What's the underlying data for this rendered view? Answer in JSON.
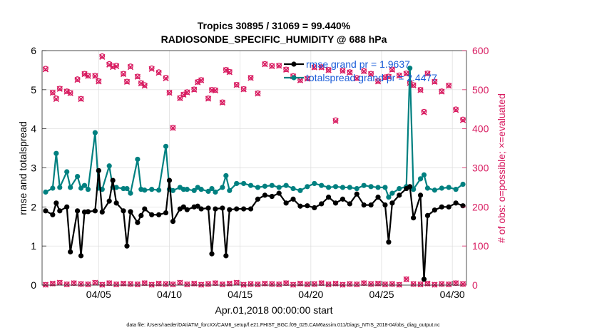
{
  "chart_data": {
    "type": "line",
    "title": "Tropics 30895 / 31069 = 99.440%",
    "subtitle": "RADIOSONDE_SPECIFIC_HUMIDITY @ 688 hPa",
    "xlabel": "Apr.01,2018 00:00:00 start",
    "ylabel": "rmse and totalspread",
    "ylabel_right": "# of obs: o=possible; ×=evaluated",
    "footer": "data file: /Users/raeder/DAI/ATM_forcXX/CAM6_setup/f.e21.FHIST_BGC.f09_025.CAM6assim.011/Diags_NTrS_2018-04/obs_diag_output.nc",
    "xlim": [
      1,
      31
    ],
    "ylim": [
      0,
      6
    ],
    "ylim_right": [
      0,
      600
    ],
    "xticks": [
      5,
      10,
      15,
      20,
      25,
      30
    ],
    "xtick_labels": [
      "04/05",
      "04/10",
      "04/15",
      "04/20",
      "04/25",
      "04/30"
    ],
    "yticks": [
      0,
      1,
      2,
      3,
      4,
      5,
      6
    ],
    "yticks_right": [
      0,
      100,
      200,
      300,
      400,
      500,
      600
    ],
    "grid": true,
    "legend_position": "top-right",
    "colors": {
      "rmse": "#000000",
      "totalspread": "#008080",
      "obs": "#d81b60",
      "legend_text": "#1a5cd8"
    },
    "x": [
      1.25,
      1.75,
      2.0,
      2.25,
      2.75,
      3.0,
      3.5,
      3.75,
      4.0,
      4.25,
      4.75,
      5.0,
      5.25,
      5.75,
      6.0,
      6.25,
      6.75,
      7.0,
      7.25,
      7.75,
      8.0,
      8.25,
      8.75,
      9.25,
      9.75,
      10.0,
      10.25,
      10.75,
      11.0,
      11.25,
      11.75,
      12.0,
      12.25,
      12.75,
      13.0,
      13.25,
      13.75,
      14.0,
      14.25,
      14.75,
      15.25,
      15.75,
      16.25,
      16.75,
      17.25,
      17.75,
      18.25,
      18.75,
      19.25,
      19.75,
      20.25,
      20.75,
      21.25,
      21.75,
      22.25,
      22.75,
      23.25,
      23.75,
      24.25,
      24.75,
      25.25,
      25.5,
      25.75,
      26.25,
      26.75,
      27.0,
      27.25,
      27.75,
      28.0,
      28.25,
      28.75,
      29.25,
      29.75,
      30.25,
      30.75
    ],
    "series": [
      {
        "name": "rmse",
        "legend_label": "rmse grand pr = 1.9637",
        "values": [
          1.9,
          1.8,
          2.1,
          1.9,
          2.0,
          0.85,
          1.9,
          0.75,
          1.87,
          1.88,
          1.9,
          2.93,
          1.87,
          2.15,
          2.68,
          2.1,
          1.9,
          1.0,
          1.88,
          1.6,
          1.78,
          1.95,
          1.8,
          1.8,
          1.85,
          2.68,
          1.63,
          1.95,
          2.0,
          1.93,
          2.0,
          2.02,
          1.95,
          1.97,
          0.8,
          1.95,
          1.97,
          0.75,
          1.93,
          1.95,
          1.95,
          1.95,
          2.2,
          2.3,
          2.27,
          2.35,
          2.1,
          2.2,
          2.02,
          2.03,
          1.98,
          2.08,
          2.25,
          2.1,
          2.2,
          2.08,
          2.33,
          2.05,
          2.05,
          2.25,
          2.05,
          1.1,
          2.1,
          2.3,
          2.47,
          2.52,
          1.72,
          2.3,
          0.15,
          1.78,
          1.92,
          2.0,
          2.0,
          2.1,
          2.03
        ]
      },
      {
        "name": "totalspread",
        "legend_label": "totalspread grand pr = 2.4477",
        "values": [
          2.38,
          2.48,
          3.37,
          2.5,
          2.9,
          2.5,
          2.78,
          2.48,
          2.55,
          2.45,
          3.9,
          2.48,
          2.45,
          3.05,
          2.5,
          2.5,
          2.47,
          2.47,
          2.35,
          3.22,
          2.45,
          2.43,
          2.45,
          2.43,
          3.55,
          2.45,
          2.42,
          2.5,
          2.45,
          2.45,
          2.42,
          2.5,
          2.45,
          2.4,
          2.47,
          2.38,
          2.5,
          2.8,
          2.42,
          2.6,
          2.6,
          2.55,
          2.5,
          2.53,
          2.55,
          2.5,
          2.55,
          2.47,
          2.42,
          2.52,
          2.6,
          2.55,
          2.5,
          2.52,
          2.5,
          2.5,
          2.47,
          2.55,
          2.52,
          2.5,
          2.5,
          2.25,
          2.35,
          2.47,
          2.52,
          5.55,
          2.45,
          2.72,
          2.82,
          2.48,
          2.43,
          2.48,
          2.5,
          2.45,
          2.58
        ]
      },
      {
        "name": "obs_possible",
        "legend_label": "",
        "values": [
          554,
          493,
          478,
          503,
          496,
          492,
          527,
          477,
          541,
          536,
          536,
          522,
          586,
          566,
          560,
          562,
          541,
          521,
          560,
          534,
          517,
          512,
          555,
          545,
          531,
          493,
          403,
          479,
          488,
          494,
          501,
          520,
          525,
          478,
          500,
          499,
          468,
          551,
          546,
          513,
          502,
          531,
          491,
          566,
          561,
          562,
          552,
          535,
          525,
          529,
          558,
          558,
          551,
          422,
          549,
          545,
          530,
          548,
          541,
          522,
          532,
          534,
          552,
          537,
          542,
          518,
          512,
          500,
          444,
          542,
          521,
          496,
          511,
          450,
          424
        ]
      },
      {
        "name": "obs_evaluated",
        "legend_label": "",
        "values": [
          552,
          492,
          476,
          502,
          495,
          491,
          525,
          476,
          540,
          535,
          535,
          521,
          584,
          564,
          558,
          560,
          540,
          520,
          558,
          533,
          516,
          510,
          553,
          543,
          529,
          492,
          402,
          478,
          487,
          493,
          500,
          519,
          524,
          477,
          499,
          498,
          467,
          550,
          545,
          512,
          501,
          530,
          490,
          565,
          560,
          561,
          551,
          534,
          524,
          528,
          557,
          557,
          550,
          420,
          548,
          544,
          529,
          547,
          540,
          521,
          531,
          533,
          551,
          536,
          541,
          517,
          511,
          499,
          442,
          541,
          520,
          495,
          510,
          448,
          422
        ]
      },
      {
        "name": "obs_bottom",
        "legend_label": "",
        "x": [
          1.25,
          1.75,
          2.25,
          2.75,
          3.25,
          3.75,
          4.25,
          4.75,
          5.25,
          5.75,
          6.25,
          6.75,
          7.25,
          7.75,
          8.25,
          8.75,
          9.25,
          9.75,
          10.25,
          10.75,
          11.25,
          11.75,
          12.25,
          12.75,
          13.25,
          13.75,
          14.25,
          14.75,
          15.25,
          15.75,
          16.25,
          16.75,
          17.25,
          17.75,
          18.25,
          18.75,
          19.25,
          19.75,
          20.25,
          20.75,
          21.25,
          21.75,
          22.25,
          22.75,
          23.25,
          23.75,
          24.25,
          24.75,
          25.25,
          25.75,
          26.25,
          26.75,
          27.25,
          27.75,
          28.25,
          28.75,
          29.25,
          29.75,
          30.25,
          30.75
        ],
        "values": [
          1,
          4,
          6,
          2,
          5,
          3,
          2,
          6,
          1,
          5,
          2,
          4,
          3,
          2,
          5,
          1,
          4,
          3,
          2,
          6,
          2,
          4,
          1,
          3,
          5,
          2,
          4,
          6,
          1,
          3,
          2,
          4,
          3,
          2,
          5,
          1,
          4,
          2,
          3,
          5,
          2,
          4,
          1,
          3,
          2,
          5,
          3,
          4,
          2,
          3,
          1,
          15,
          3,
          2,
          4,
          1,
          3,
          2,
          5,
          3
        ]
      }
    ]
  }
}
